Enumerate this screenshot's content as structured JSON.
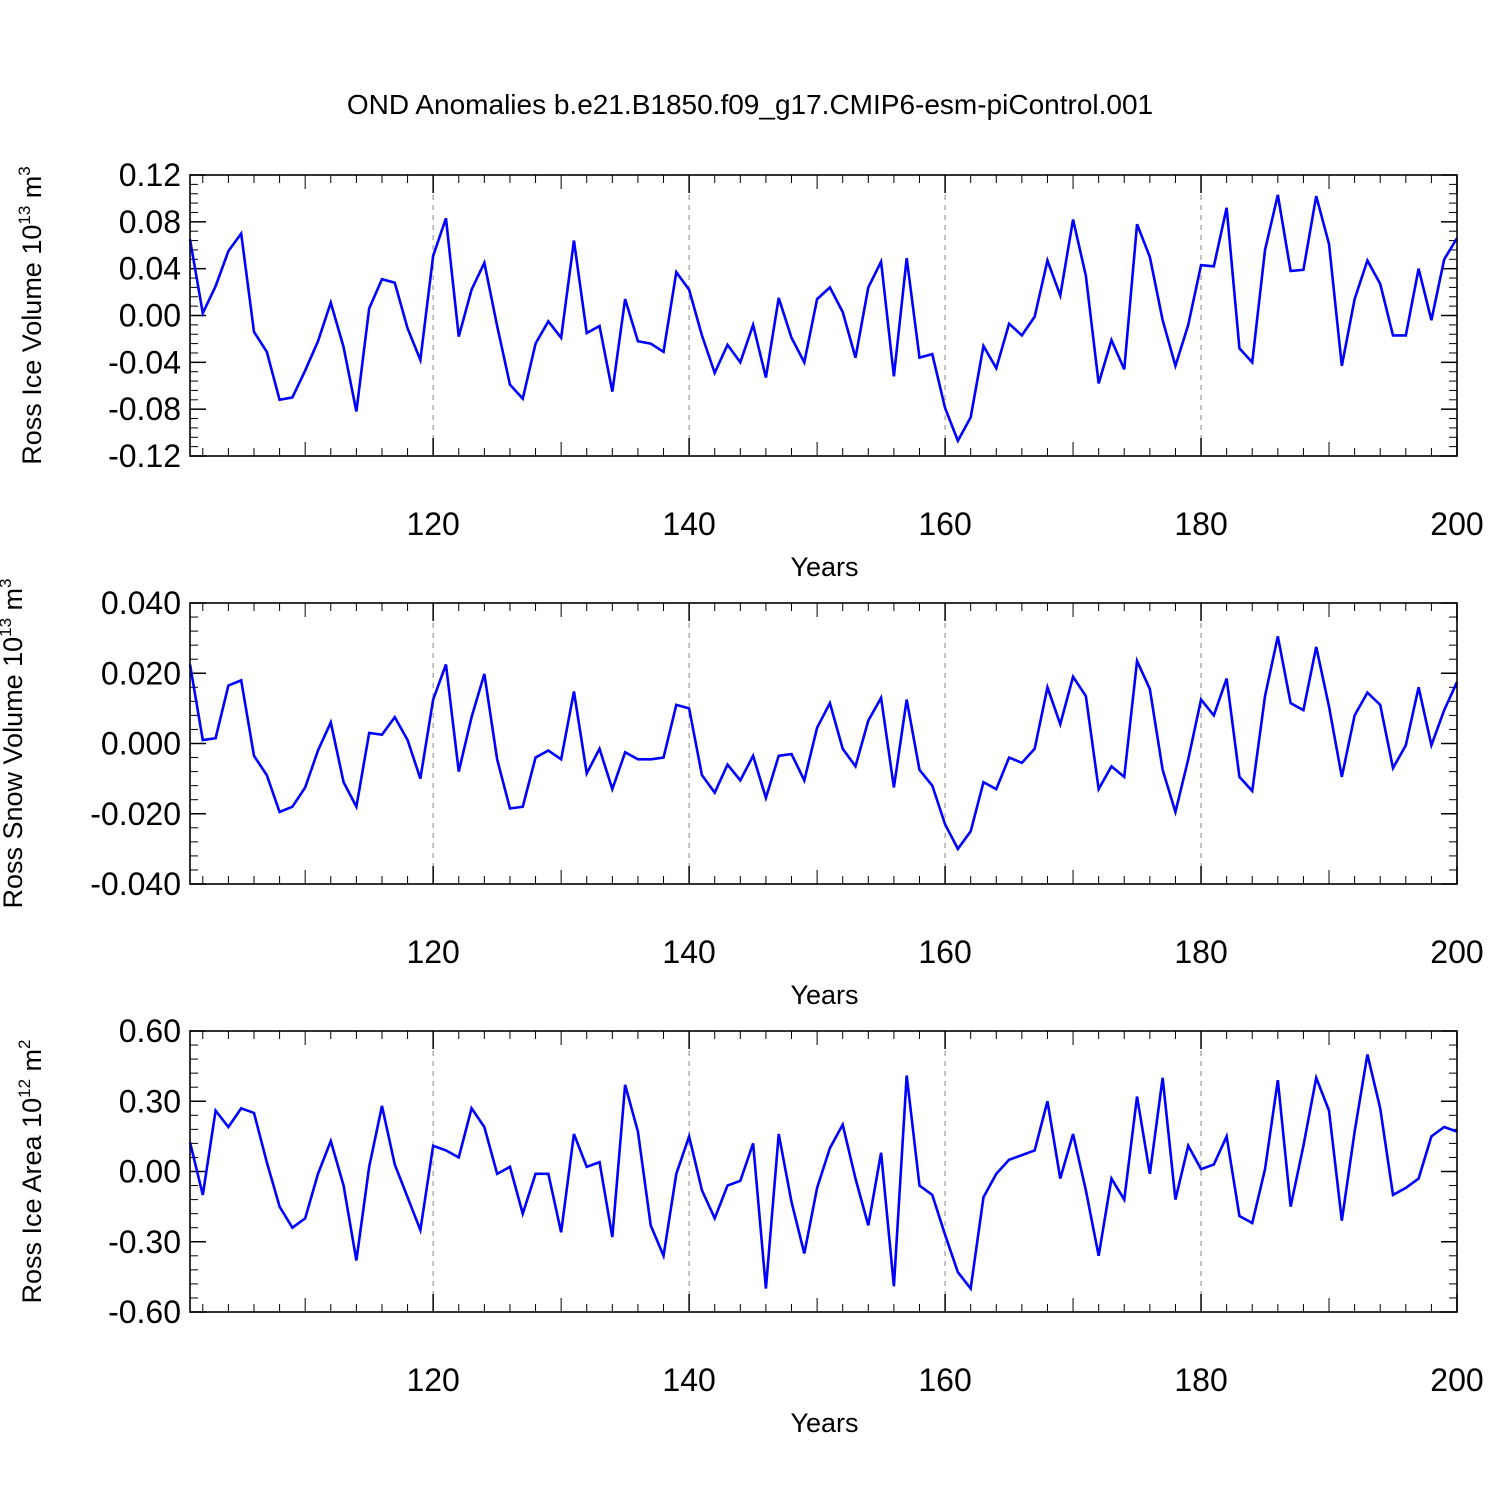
{
  "title": "OND Anomalies b.e21.B1850.f09_g17.CMIP6-esm-piControl.001",
  "colors": {
    "line": "#0000ff",
    "axis": "#000000",
    "grid": "#999999"
  },
  "chart_data": [
    {
      "type": "line",
      "ylabel": {
        "main": "Ross Ice Volume 10",
        "exp": "13",
        "unit": " m",
        "unit_exp": "3"
      },
      "xlabel": "Years",
      "xlim": [
        101,
        200
      ],
      "ylim": [
        -0.12,
        0.12
      ],
      "xticks": [
        120,
        140,
        160,
        180,
        200
      ],
      "xtick_labels": [
        "120",
        "140",
        "160",
        "180",
        "200"
      ],
      "yticks": [
        -0.12,
        -0.08,
        -0.04,
        0.0,
        0.04,
        0.08,
        0.12
      ],
      "ytick_labels": [
        "-0.12",
        "-0.08",
        "-0.04",
        "0.00",
        "0.04",
        "0.08",
        "0.12"
      ],
      "grid_x": [
        120,
        140,
        160,
        180
      ],
      "series": [
        {
          "name": "Ross Ice Volume",
          "x_start": 101,
          "values": [
            0.065,
            0.002,
            0.025,
            0.055,
            0.07,
            -0.014,
            -0.031,
            -0.072,
            -0.07,
            -0.047,
            -0.022,
            0.011,
            -0.027,
            -0.082,
            0.006,
            0.031,
            0.028,
            -0.011,
            -0.038,
            0.051,
            0.083,
            -0.018,
            0.022,
            0.045,
            -0.009,
            -0.059,
            -0.071,
            -0.024,
            -0.005,
            -0.019,
            0.064,
            -0.015,
            -0.009,
            -0.065,
            0.014,
            -0.022,
            -0.024,
            -0.031,
            0.037,
            0.022,
            -0.017,
            -0.049,
            -0.025,
            -0.04,
            -0.008,
            -0.053,
            0.015,
            -0.019,
            -0.04,
            0.014,
            0.024,
            0.003,
            -0.036,
            0.024,
            0.046,
            -0.052,
            0.049,
            -0.036,
            -0.033,
            -0.079,
            -0.107,
            -0.087,
            -0.026,
            -0.045,
            -0.007,
            -0.017,
            -0.001,
            0.047,
            0.017,
            0.082,
            0.034,
            -0.058,
            -0.021,
            -0.046,
            0.078,
            0.05,
            -0.004,
            -0.043,
            -0.008,
            0.043,
            0.042,
            0.092,
            -0.028,
            -0.04,
            0.056,
            0.103,
            0.038,
            0.039,
            0.102,
            0.061,
            -0.043,
            0.014,
            0.047,
            0.027,
            -0.017,
            -0.017,
            0.04,
            -0.004,
            0.048,
            0.066
          ]
        }
      ]
    },
    {
      "type": "line",
      "ylabel": {
        "main": "Ross Snow Volume 10",
        "exp": "13",
        "unit": " m",
        "unit_exp": "3"
      },
      "xlabel": "Years",
      "xlim": [
        101,
        200
      ],
      "ylim": [
        -0.04,
        0.04
      ],
      "xticks": [
        120,
        140,
        160,
        180,
        200
      ],
      "xtick_labels": [
        "120",
        "140",
        "160",
        "180",
        "200"
      ],
      "yticks": [
        -0.04,
        -0.02,
        0.0,
        0.02,
        0.04
      ],
      "ytick_labels": [
        "-0.040",
        "-0.020",
        "0.000",
        "0.020",
        "0.040"
      ],
      "grid_x": [
        120,
        140,
        160,
        180
      ],
      "series": [
        {
          "name": "Ross Snow Volume",
          "x_start": 101,
          "values": [
            0.0225,
            0.001,
            0.0015,
            0.0165,
            0.018,
            -0.0035,
            -0.009,
            -0.0195,
            -0.018,
            -0.0125,
            -0.002,
            0.006,
            -0.011,
            -0.018,
            0.003,
            0.0025,
            0.0075,
            0.001,
            -0.01,
            0.0125,
            0.0225,
            -0.008,
            0.0075,
            0.0198,
            -0.0045,
            -0.0185,
            -0.018,
            -0.004,
            -0.002,
            -0.0045,
            0.0148,
            -0.0085,
            -0.0015,
            -0.013,
            -0.0025,
            -0.0045,
            -0.0045,
            -0.004,
            0.011,
            0.01,
            -0.009,
            -0.014,
            -0.006,
            -0.0105,
            -0.0035,
            -0.0155,
            -0.0035,
            -0.003,
            -0.0105,
            0.0045,
            0.0115,
            -0.0015,
            -0.0065,
            0.0065,
            0.013,
            -0.0125,
            0.0125,
            -0.0075,
            -0.012,
            -0.023,
            -0.03,
            -0.025,
            -0.011,
            -0.013,
            -0.004,
            -0.0055,
            -0.0015,
            0.016,
            0.0055,
            0.019,
            0.0135,
            -0.013,
            -0.0065,
            -0.0095,
            0.0235,
            0.0155,
            -0.0075,
            -0.0195,
            -0.0045,
            0.0125,
            0.008,
            0.0185,
            -0.0095,
            -0.0135,
            0.0135,
            0.0305,
            0.0115,
            0.0095,
            0.0275,
            0.0105,
            -0.0095,
            0.008,
            0.0145,
            0.011,
            -0.007,
            -0.0005,
            0.016,
            -0.0005,
            0.0095,
            0.0175
          ]
        }
      ]
    },
    {
      "type": "line",
      "ylabel": {
        "main": "Ross Ice Area 10",
        "exp": "12",
        "unit": " m",
        "unit_exp": "2"
      },
      "xlabel": "Years",
      "xlim": [
        101,
        200
      ],
      "ylim": [
        -0.6,
        0.6
      ],
      "xticks": [
        120,
        140,
        160,
        180,
        200
      ],
      "xtick_labels": [
        "120",
        "140",
        "160",
        "180",
        "200"
      ],
      "yticks": [
        -0.6,
        -0.3,
        0.0,
        0.3,
        0.6
      ],
      "ytick_labels": [
        "-0.60",
        "-0.30",
        "0.00",
        "0.30",
        "0.60"
      ],
      "grid_x": [
        120,
        140,
        160,
        180
      ],
      "series": [
        {
          "name": "Ross Ice Area",
          "x_start": 101,
          "values": [
            0.125,
            -0.1,
            0.26,
            0.19,
            0.27,
            0.25,
            0.04,
            -0.15,
            -0.24,
            -0.2,
            -0.01,
            0.13,
            -0.06,
            -0.38,
            0.02,
            0.28,
            0.03,
            -0.11,
            -0.25,
            0.11,
            0.09,
            0.06,
            0.27,
            0.19,
            -0.01,
            0.02,
            -0.18,
            -0.01,
            -0.01,
            -0.26,
            0.16,
            0.02,
            0.04,
            -0.28,
            0.37,
            0.17,
            -0.23,
            -0.36,
            -0.01,
            0.15,
            -0.08,
            -0.2,
            -0.06,
            -0.04,
            0.12,
            -0.5,
            0.16,
            -0.13,
            -0.35,
            -0.07,
            0.1,
            0.2,
            -0.03,
            -0.23,
            0.08,
            -0.49,
            0.41,
            -0.06,
            -0.1,
            -0.27,
            -0.43,
            -0.5,
            -0.11,
            -0.01,
            0.05,
            0.07,
            0.09,
            0.3,
            -0.03,
            0.16,
            -0.08,
            -0.36,
            -0.03,
            -0.12,
            0.32,
            -0.01,
            0.4,
            -0.12,
            0.11,
            0.01,
            0.03,
            0.15,
            -0.19,
            -0.22,
            0.01,
            0.39,
            -0.15,
            0.11,
            0.4,
            0.26,
            -0.21,
            0.17,
            0.5,
            0.27,
            -0.1,
            -0.07,
            -0.03,
            0.15,
            0.19,
            0.17
          ]
        }
      ]
    }
  ]
}
